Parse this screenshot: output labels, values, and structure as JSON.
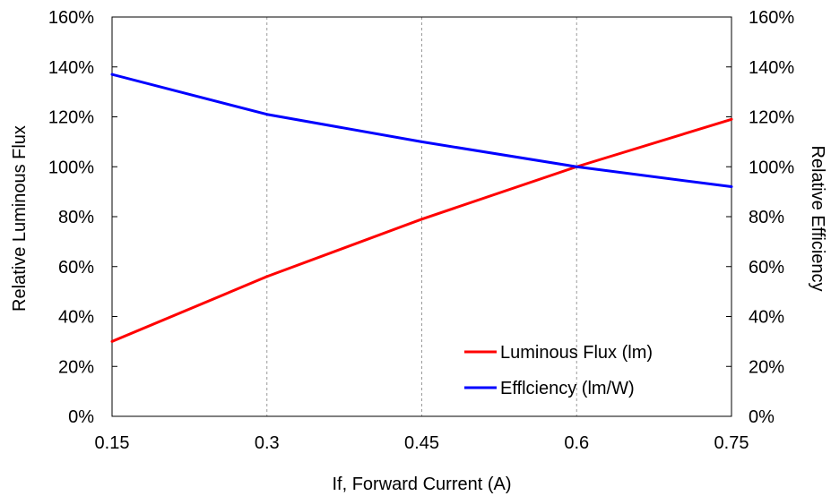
{
  "chart_data": {
    "type": "line",
    "title": "",
    "xlabel": "If, Forward Current (A)",
    "ylabel": "Relative Luminous Flux",
    "y2label": "Relative Efficiency",
    "x": [
      0.15,
      0.3,
      0.45,
      0.6,
      0.75
    ],
    "x_tick_labels": [
      "0.15",
      "0.3",
      "0.45",
      "0.6",
      "0.75"
    ],
    "xlim": [
      0.15,
      0.75
    ],
    "ylim": [
      0,
      160
    ],
    "y_tick_labels": [
      "0%",
      "20%",
      "40%",
      "60%",
      "80%",
      "100%",
      "120%",
      "140%",
      "160%"
    ],
    "y2_tick_labels": [
      "0%",
      "20%",
      "40%",
      "60%",
      "80%",
      "100%",
      "120%",
      "140%",
      "160%"
    ],
    "grid": "vertical dashed",
    "legend_position": "bottom-right",
    "series": [
      {
        "name": "Luminous Flux (lm)",
        "color": "#ff0000",
        "values": [
          30,
          56,
          79,
          100,
          119
        ]
      },
      {
        "name": "Efflciency (lm/W)",
        "color": "#0000ff",
        "values": [
          137,
          121,
          110,
          100,
          92
        ]
      }
    ]
  }
}
